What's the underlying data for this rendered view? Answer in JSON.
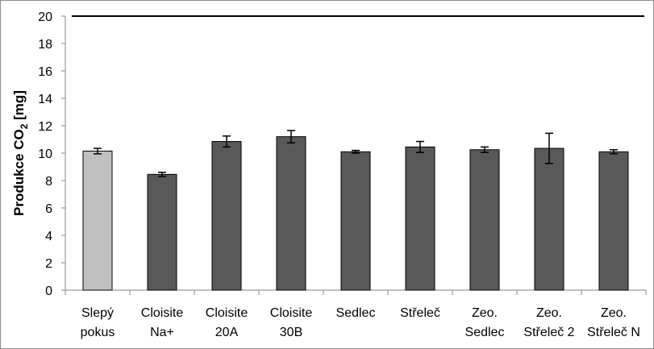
{
  "chart_data": {
    "type": "bar",
    "title": "",
    "xlabel": "",
    "ylabel": "Produkce CO₂ [mg]",
    "ylabel_parts": {
      "main": "Produkce CO",
      "sub": "2",
      "unit": " [mg]"
    },
    "ylim": [
      0,
      20
    ],
    "ytick_step": 2,
    "yticks": [
      "0",
      "2",
      "4",
      "6",
      "8",
      "10",
      "12",
      "14",
      "16",
      "18",
      "20"
    ],
    "grid": false,
    "legend": "none",
    "categories": [
      [
        "Slepý",
        "pokus"
      ],
      [
        "Cloisite",
        "Na+"
      ],
      [
        "Cloisite",
        "20A"
      ],
      [
        "Cloisite",
        "30B"
      ],
      [
        "Sedlec"
      ],
      [
        "Střeleč"
      ],
      [
        "Zeo.",
        "Sedlec"
      ],
      [
        "Zeo.",
        "Střeleč 2"
      ],
      [
        "Zeo.",
        "Střeleč N"
      ]
    ],
    "values": [
      10.15,
      8.45,
      10.85,
      11.2,
      10.1,
      10.45,
      10.25,
      10.35,
      10.1
    ],
    "errors": [
      0.2,
      0.15,
      0.4,
      0.45,
      0.1,
      0.4,
      0.2,
      1.1,
      0.15
    ],
    "colors": {
      "control_bar": "#c0c0c0",
      "bar": "#595959",
      "bar_border": "#000000",
      "error_bar": "#000000",
      "axis": "#868686",
      "top_line": "#000000"
    }
  }
}
